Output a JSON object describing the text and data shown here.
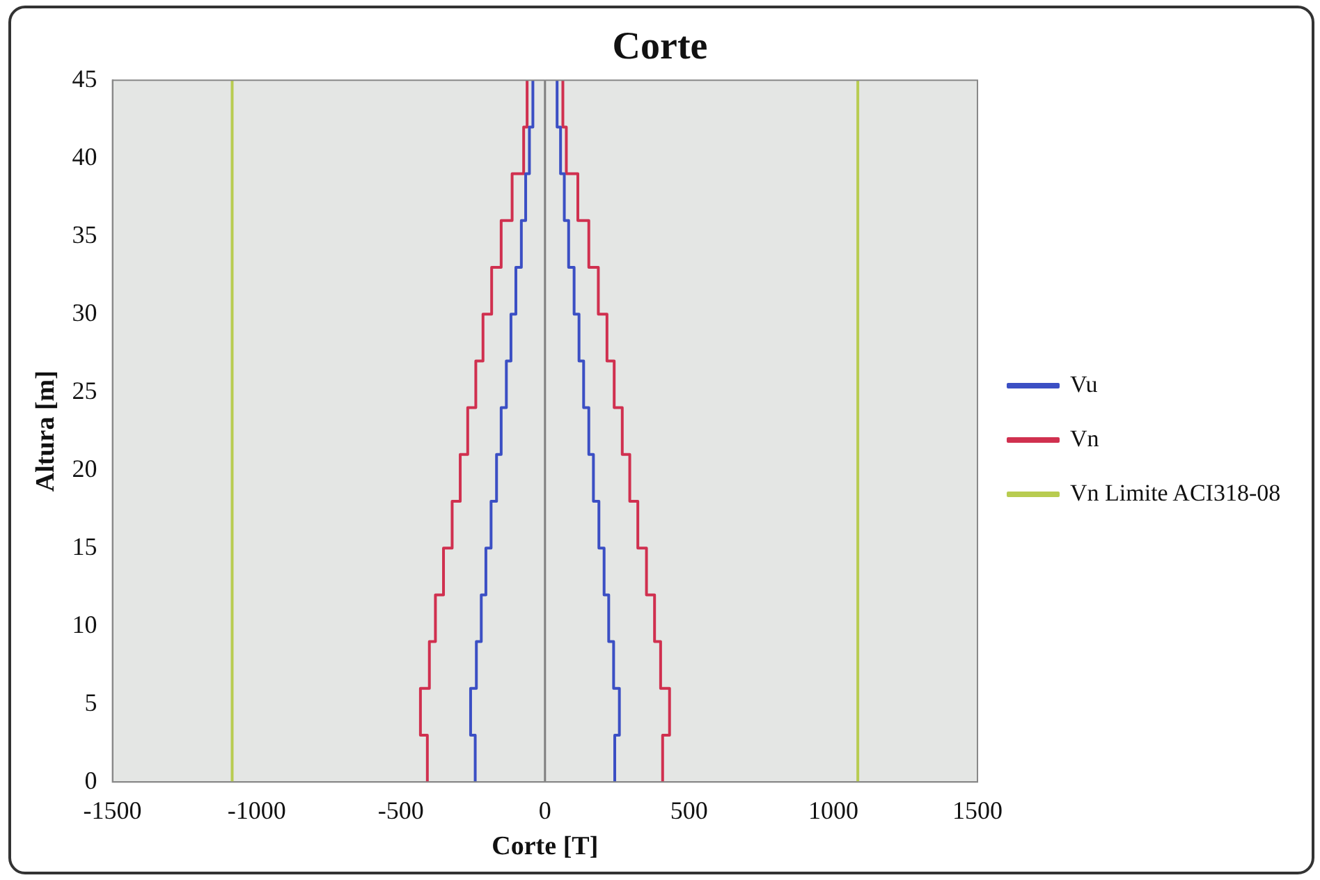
{
  "chart_data": {
    "type": "line",
    "title": "Corte",
    "xlabel": "Corte [T]",
    "ylabel": "Altura [m]",
    "xlim": [
      -1500,
      1500
    ],
    "xticks": [
      -1500,
      -1000,
      -500,
      0,
      500,
      1000,
      1500
    ],
    "ylim": [
      0,
      45
    ],
    "yticks": [
      0,
      5,
      10,
      15,
      20,
      25,
      30,
      35,
      40,
      45
    ],
    "grid": false,
    "legend": "right",
    "marker": "none",
    "line_style": "solid",
    "ref_lines": [
      {
        "axis": "x",
        "value": 0,
        "color": "#808080"
      }
    ],
    "series": [
      {
        "name": "Vu",
        "color": "#3b4fc4",
        "x": [
          -242,
          -242,
          -258,
          -258,
          -238,
          -238,
          -221,
          -221,
          -205,
          -205,
          -187,
          -187,
          -168,
          -168,
          -152,
          -152,
          -134,
          -134,
          -118,
          -118,
          -101,
          -101,
          -82,
          -82,
          -67,
          -67,
          -54,
          -54,
          -42,
          -42,
          null,
          242,
          242,
          258,
          258,
          238,
          238,
          221,
          221,
          205,
          205,
          187,
          187,
          168,
          168,
          152,
          152,
          134,
          134,
          118,
          118,
          101,
          101,
          82,
          82,
          67,
          67,
          54,
          54,
          42,
          42
        ],
        "values": [
          0,
          3,
          3,
          6,
          6,
          9,
          9,
          12,
          12,
          15,
          15,
          18,
          18,
          21,
          21,
          24,
          24,
          27,
          27,
          30,
          30,
          33,
          33,
          36,
          36,
          39,
          39,
          42,
          42,
          45,
          null,
          0,
          3,
          3,
          6,
          6,
          9,
          9,
          12,
          12,
          15,
          15,
          18,
          18,
          21,
          21,
          24,
          24,
          27,
          27,
          30,
          30,
          33,
          33,
          36,
          36,
          39,
          39,
          42,
          42,
          45
        ]
      },
      {
        "name": "Vn",
        "color": "#d0304f",
        "x": [
          -408,
          -408,
          -432,
          -432,
          -401,
          -401,
          -380,
          -380,
          -352,
          -352,
          -322,
          -322,
          -294,
          -294,
          -268,
          -268,
          -240,
          -240,
          -215,
          -215,
          -185,
          -185,
          -152,
          -152,
          -114,
          -114,
          -74,
          -74,
          -62,
          -62,
          null,
          408,
          408,
          432,
          432,
          401,
          401,
          380,
          380,
          352,
          352,
          322,
          322,
          294,
          294,
          268,
          268,
          240,
          240,
          215,
          215,
          185,
          185,
          152,
          152,
          114,
          114,
          74,
          74,
          62,
          62
        ],
        "values": [
          0,
          3,
          3,
          6,
          6,
          9,
          9,
          12,
          12,
          15,
          15,
          18,
          18,
          21,
          21,
          24,
          24,
          27,
          27,
          30,
          30,
          33,
          33,
          36,
          36,
          39,
          39,
          42,
          42,
          45,
          null,
          0,
          3,
          3,
          6,
          6,
          9,
          9,
          12,
          12,
          15,
          15,
          18,
          18,
          21,
          21,
          24,
          24,
          27,
          27,
          30,
          30,
          33,
          33,
          36,
          36,
          39,
          39,
          42,
          42,
          45
        ]
      },
      {
        "name": "Vn Limite ACI318-08",
        "color": "#b8cc50",
        "x": [
          -1085,
          -1085,
          null,
          1085,
          1085
        ],
        "values": [
          0,
          45,
          null,
          0,
          45
        ]
      }
    ]
  }
}
